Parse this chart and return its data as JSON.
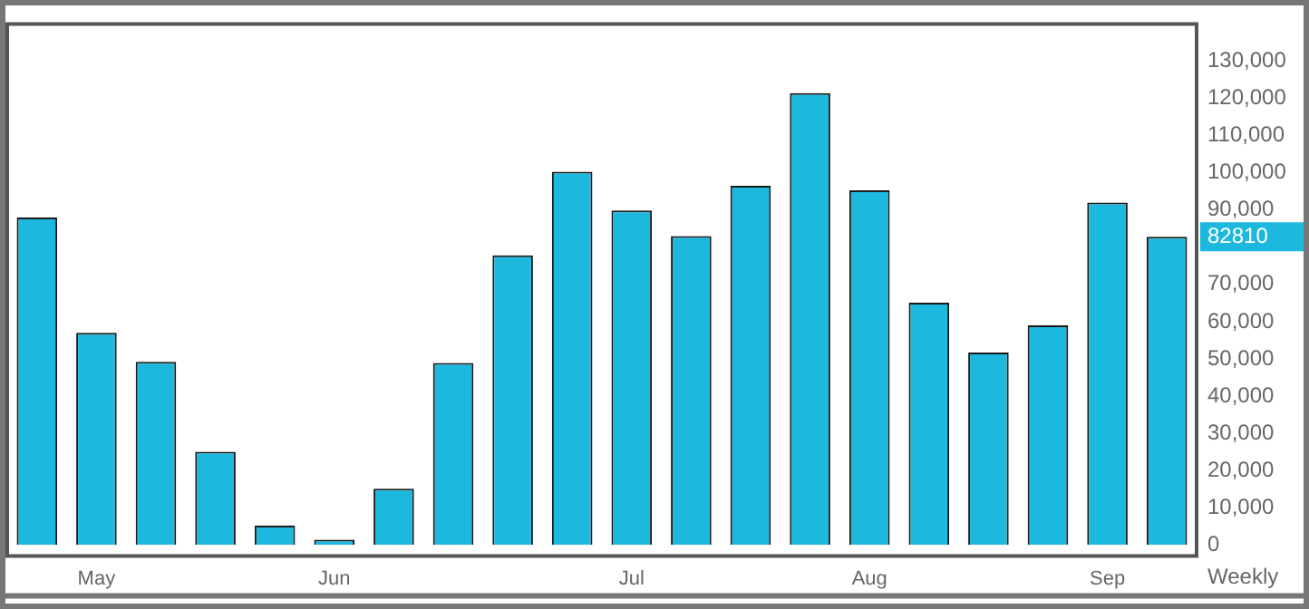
{
  "chart_data": {
    "type": "bar",
    "xlabel": "Weekly",
    "categories": [
      null,
      "May",
      null,
      null,
      null,
      "Jun",
      null,
      null,
      null,
      null,
      "Jul",
      null,
      null,
      null,
      "Aug",
      null,
      null,
      null,
      "Sep",
      null
    ],
    "values": [
      88000,
      57000,
      49200,
      25000,
      5200,
      1400,
      15100,
      48900,
      77800,
      100300,
      89900,
      83000,
      96500,
      121400,
      95300,
      65100,
      51700,
      59000,
      92000,
      82810
    ],
    "color": "#1db8de",
    "ylim": [
      -3000,
      140000
    ],
    "yticks": [
      {
        "value": 0,
        "label": "0"
      },
      {
        "value": 10000,
        "label": "10,000"
      },
      {
        "value": 20000,
        "label": "20,000"
      },
      {
        "value": 30000,
        "label": "30,000"
      },
      {
        "value": 40000,
        "label": "40,000"
      },
      {
        "value": 50000,
        "label": "50,000"
      },
      {
        "value": 60000,
        "label": "60,000"
      },
      {
        "value": 70000,
        "label": "70,000"
      },
      {
        "value": 90000,
        "label": "90,000"
      },
      {
        "value": 100000,
        "label": "100,000"
      },
      {
        "value": 110000,
        "label": "110,000"
      },
      {
        "value": 120000,
        "label": "120,000"
      },
      {
        "value": 130000,
        "label": "130,000"
      }
    ],
    "grid": false,
    "legend": false,
    "annotations": [
      "82810"
    ]
  }
}
